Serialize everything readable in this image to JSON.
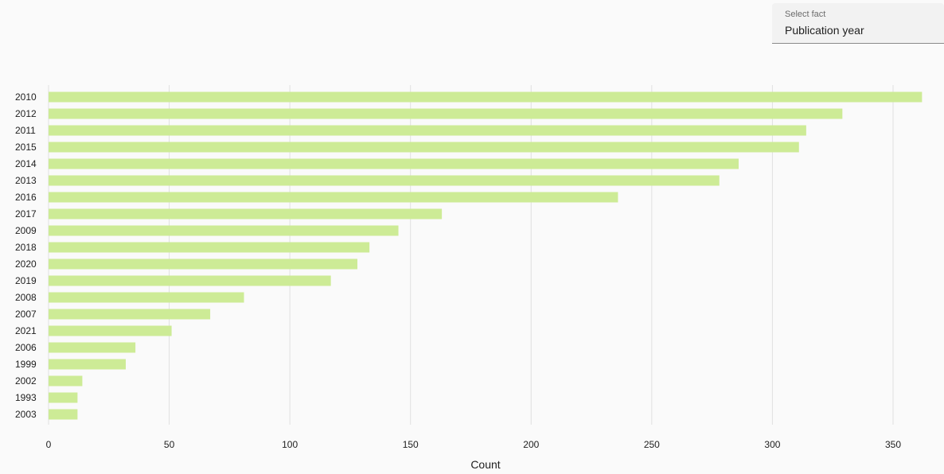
{
  "select": {
    "label": "Select fact",
    "value": "Publication year"
  },
  "chart_data": {
    "type": "bar",
    "orientation": "horizontal",
    "categories": [
      "2010",
      "2012",
      "2011",
      "2015",
      "2014",
      "2013",
      "2016",
      "2017",
      "2009",
      "2018",
      "2020",
      "2019",
      "2008",
      "2007",
      "2021",
      "2006",
      "1999",
      "2002",
      "1993",
      "2003"
    ],
    "values": [
      362,
      329,
      314,
      311,
      286,
      278,
      236,
      163,
      145,
      133,
      128,
      117,
      81,
      67,
      51,
      36,
      32,
      14,
      12,
      12
    ],
    "xlabel": "Count",
    "ylabel": "",
    "xlim": [
      0,
      360
    ],
    "xticks": [
      0,
      50,
      100,
      150,
      200,
      250,
      300,
      350
    ],
    "grid": true,
    "legend": "none",
    "bar_color": "#cdeb96",
    "grid_color": "#e0e0e0"
  }
}
